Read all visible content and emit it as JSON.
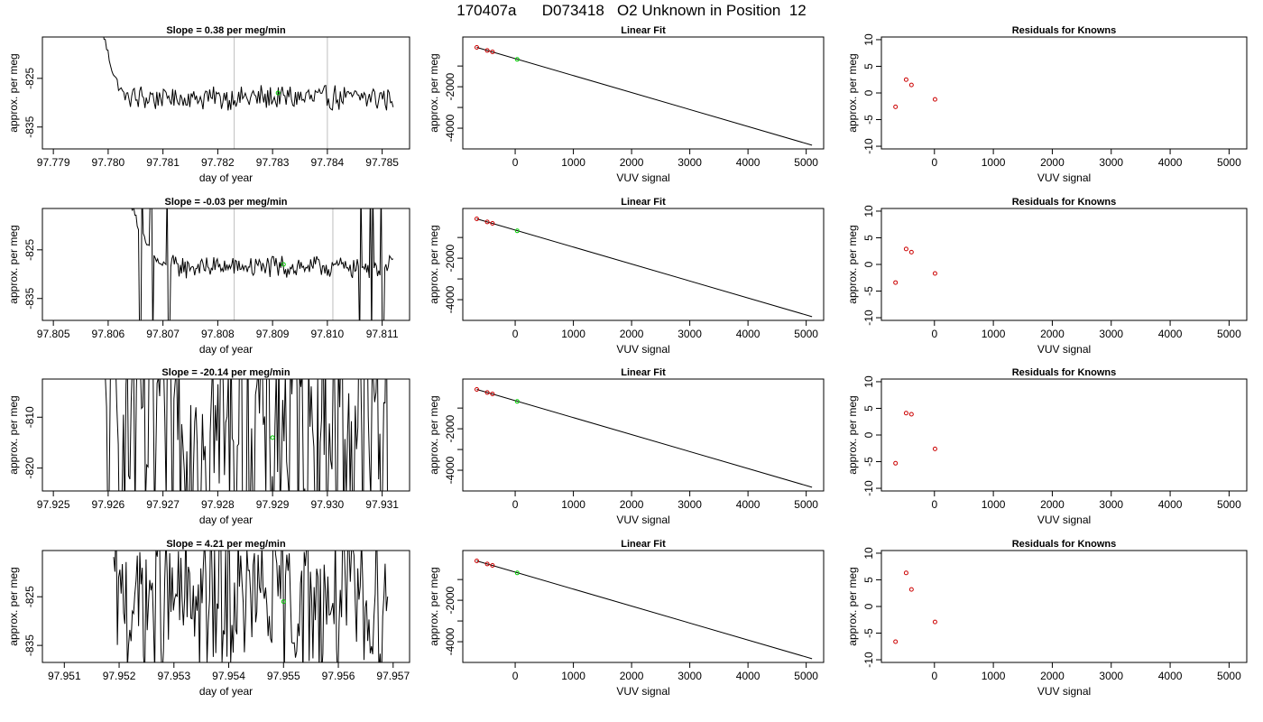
{
  "title": "170407a      D073418   O2 Unknown in Position  12",
  "colors": {
    "trace": "#000000",
    "vline": "#bebebe",
    "unknown": "#00cc00",
    "known": "#cc0000",
    "frame": "#000000"
  },
  "chart_data": [
    {
      "type": "line",
      "panel": "slope",
      "title": "Slope =  0.38  per meg/min",
      "xlabel": "day of year",
      "ylabel": "approx. per meg",
      "xlim": [
        97.7788,
        97.7855
      ],
      "ylim": [
        -839.5,
        -816.5
      ],
      "xticks": [
        97.779,
        97.78,
        97.781,
        97.782,
        97.783,
        97.784,
        97.785
      ],
      "xtick_labels": [
        "97.779",
        "97.780",
        "97.781",
        "97.782",
        "97.783",
        "97.784",
        "97.785"
      ],
      "yticks": [
        -835,
        -825
      ],
      "ytick_labels": [
        "-835",
        "-825"
      ],
      "vlines": [
        97.7823,
        97.784
      ],
      "trace": {
        "x_start": 97.7799,
        "x_end": 97.7852,
        "settle_x": 97.7804,
        "base": -829.0,
        "noise": 2.2,
        "spikes": []
      },
      "unknown_point": {
        "x": 97.7831,
        "y": -828.0
      }
    },
    {
      "type": "line",
      "panel": "slope",
      "title": "Slope =  -0.03  per meg/min",
      "xlabel": "day of year",
      "ylabel": "approx. per meg",
      "xlim": [
        97.8048,
        97.8115
      ],
      "ylim": [
        -839.5,
        -816.5
      ],
      "xticks": [
        97.805,
        97.806,
        97.807,
        97.808,
        97.809,
        97.81,
        97.811
      ],
      "xtick_labels": [
        "97.805",
        "97.806",
        "97.807",
        "97.808",
        "97.809",
        "97.810",
        "97.811"
      ],
      "yticks": [
        -835,
        -825
      ],
      "ytick_labels": [
        "-835",
        "-825"
      ],
      "vlines": [
        97.8083,
        97.8101
      ],
      "trace": {
        "x_start": 97.8064,
        "x_end": 97.8112,
        "settle_x": 97.8071,
        "base": -828.5,
        "noise": 2.0,
        "spikes": [
          97.8066,
          97.8068,
          97.8071,
          97.8106,
          97.8108,
          97.811
        ]
      },
      "unknown_point": {
        "x": 97.8092,
        "y": -828.0
      }
    },
    {
      "type": "line",
      "panel": "slope",
      "title": "Slope =  -20.14  per meg/min",
      "xlabel": "day of year",
      "ylabel": "approx. per meg",
      "xlim": [
        97.9248,
        97.9315
      ],
      "ylim": [
        -824.5,
        -802.5
      ],
      "xticks": [
        97.925,
        97.926,
        97.927,
        97.928,
        97.929,
        97.93,
        97.931
      ],
      "xtick_labels": [
        "97.925",
        "97.926",
        "97.927",
        "97.928",
        "97.929",
        "97.930",
        "97.931"
      ],
      "yticks": [
        -820,
        -810
      ],
      "ytick_labels": [
        "-820",
        "-810"
      ],
      "vlines": [],
      "trace": {
        "x_start": 97.9259,
        "x_end": 97.9311,
        "settle_x": 0,
        "base": -812.0,
        "noise": 22.0,
        "spikes": []
      },
      "unknown_point": {
        "x": 97.929,
        "y": -814.0
      }
    },
    {
      "type": "line",
      "panel": "slope",
      "title": "Slope =  4.21  per meg/min",
      "xlabel": "day of year",
      "ylabel": "approx. per meg",
      "xlim": [
        97.9506,
        97.9573
      ],
      "ylim": [
        -838.5,
        -815.5
      ],
      "xticks": [
        97.951,
        97.952,
        97.953,
        97.954,
        97.955,
        97.956,
        97.957
      ],
      "xtick_labels": [
        "97.951",
        "97.952",
        "97.953",
        "97.954",
        "97.955",
        "97.956",
        "97.957"
      ],
      "yticks": [
        -835,
        -825
      ],
      "ytick_labels": [
        "-835",
        "-825"
      ],
      "vlines": [],
      "trace": {
        "x_start": 97.9519,
        "x_end": 97.9569,
        "settle_x": 0,
        "base": -826.0,
        "noise": 14.0,
        "spikes": []
      },
      "unknown_point": {
        "x": 97.955,
        "y": -826.0
      }
    },
    {
      "type": "scatter",
      "panel": "fit",
      "title": "Linear Fit",
      "xlabel": "VUV signal",
      "ylabel": "approx. per meg",
      "xlim": [
        -900,
        5300
      ],
      "ylim": [
        -5000,
        400
      ],
      "xticks": [
        0,
        1000,
        2000,
        3000,
        4000,
        5000
      ],
      "xtick_labels": [
        "0",
        "1000",
        "2000",
        "3000",
        "4000",
        "5000"
      ],
      "yticks": [
        -4000,
        -3000,
        -2000,
        -1000
      ],
      "ytick_labels": [
        "-4000",
        "",
        "-2000",
        ""
      ],
      "line": {
        "x": [
          -660,
          5100
        ],
        "y": [
          -100,
          -4820
        ]
      },
      "knowns": {
        "x": [
          -660,
          -480,
          -390
        ],
        "y": [
          -100,
          -250,
          -320
        ]
      },
      "unknown": {
        "x": 35,
        "y": -680
      }
    },
    {
      "type": "scatter",
      "panel": "fit",
      "title": "Linear Fit",
      "xlabel": "VUV signal",
      "ylabel": "approx. per meg",
      "xlim": [
        -900,
        5300
      ],
      "ylim": [
        -5000,
        400
      ],
      "xticks": [
        0,
        1000,
        2000,
        3000,
        4000,
        5000
      ],
      "xtick_labels": [
        "0",
        "1000",
        "2000",
        "3000",
        "4000",
        "5000"
      ],
      "yticks": [
        -4000,
        -3000,
        -2000,
        -1000
      ],
      "ytick_labels": [
        "-4000",
        "",
        "-2000",
        ""
      ],
      "line": {
        "x": [
          -660,
          5100
        ],
        "y": [
          -100,
          -4820
        ]
      },
      "knowns": {
        "x": [
          -660,
          -480,
          -390
        ],
        "y": [
          -100,
          -250,
          -320
        ]
      },
      "unknown": {
        "x": 35,
        "y": -680
      }
    },
    {
      "type": "scatter",
      "panel": "fit",
      "title": "Linear Fit",
      "xlabel": "VUV signal",
      "ylabel": "approx. per meg",
      "xlim": [
        -900,
        5300
      ],
      "ylim": [
        -5000,
        400
      ],
      "xticks": [
        0,
        1000,
        2000,
        3000,
        4000,
        5000
      ],
      "xtick_labels": [
        "0",
        "1000",
        "2000",
        "3000",
        "4000",
        "5000"
      ],
      "yticks": [
        -4000,
        -3000,
        -2000,
        -1000
      ],
      "ytick_labels": [
        "-4000",
        "",
        "-2000",
        ""
      ],
      "line": {
        "x": [
          -660,
          5100
        ],
        "y": [
          -100,
          -4820
        ]
      },
      "knowns": {
        "x": [
          -660,
          -480,
          -390
        ],
        "y": [
          -100,
          -250,
          -320
        ]
      },
      "unknown": {
        "x": 35,
        "y": -680
      }
    },
    {
      "type": "scatter",
      "panel": "fit",
      "title": "Linear Fit",
      "xlabel": "VUV signal",
      "ylabel": "approx. per meg",
      "xlim": [
        -900,
        5300
      ],
      "ylim": [
        -5000,
        400
      ],
      "xticks": [
        0,
        1000,
        2000,
        3000,
        4000,
        5000
      ],
      "xtick_labels": [
        "0",
        "1000",
        "2000",
        "3000",
        "4000",
        "5000"
      ],
      "yticks": [
        -4000,
        -3000,
        -2000,
        -1000
      ],
      "ytick_labels": [
        "-4000",
        "",
        "-2000",
        ""
      ],
      "line": {
        "x": [
          -660,
          5100
        ],
        "y": [
          -100,
          -4820
        ]
      },
      "knowns": {
        "x": [
          -660,
          -480,
          -390
        ],
        "y": [
          -100,
          -250,
          -320
        ]
      },
      "unknown": {
        "x": 35,
        "y": -680
      }
    },
    {
      "type": "scatter",
      "panel": "resid",
      "title": "Residuals for Knowns",
      "xlabel": "VUV signal",
      "ylabel": "approx. per meg",
      "xlim": [
        -900,
        5300
      ],
      "ylim": [
        -10.5,
        10.5
      ],
      "xticks": [
        0,
        1000,
        2000,
        3000,
        4000,
        5000
      ],
      "xtick_labels": [
        "0",
        "1000",
        "2000",
        "3000",
        "4000",
        "5000"
      ],
      "yticks": [
        -10,
        -5,
        0,
        5,
        10
      ],
      "ytick_labels": [
        "-10",
        "-5",
        "0",
        "5",
        "10"
      ],
      "points": {
        "x": [
          -660,
          -480,
          -390,
          10
        ],
        "y": [
          -2.6,
          2.5,
          1.5,
          -1.2
        ]
      }
    },
    {
      "type": "scatter",
      "panel": "resid",
      "title": "Residuals for Knowns",
      "xlabel": "VUV signal",
      "ylabel": "approx. per meg",
      "xlim": [
        -900,
        5300
      ],
      "ylim": [
        -10.5,
        10.5
      ],
      "xticks": [
        0,
        1000,
        2000,
        3000,
        4000,
        5000
      ],
      "xtick_labels": [
        "0",
        "1000",
        "2000",
        "3000",
        "4000",
        "5000"
      ],
      "yticks": [
        -10,
        -5,
        0,
        5,
        10
      ],
      "ytick_labels": [
        "-10",
        "-5",
        "0",
        "5",
        "10"
      ],
      "points": {
        "x": [
          -660,
          -480,
          -390,
          10
        ],
        "y": [
          -3.4,
          2.9,
          2.3,
          -1.7
        ]
      }
    },
    {
      "type": "scatter",
      "panel": "resid",
      "title": "Residuals for Knowns",
      "xlabel": "VUV signal",
      "ylabel": "approx. per meg",
      "xlim": [
        -900,
        5300
      ],
      "ylim": [
        -10.5,
        10.5
      ],
      "xticks": [
        0,
        1000,
        2000,
        3000,
        4000,
        5000
      ],
      "xtick_labels": [
        "0",
        "1000",
        "2000",
        "3000",
        "4000",
        "5000"
      ],
      "yticks": [
        -10,
        -5,
        0,
        5,
        10
      ],
      "ytick_labels": [
        "-10",
        "-5",
        "0",
        "5",
        "10"
      ],
      "points": {
        "x": [
          -660,
          -480,
          -390,
          10
        ],
        "y": [
          -5.3,
          4.1,
          3.9,
          -2.6
        ]
      }
    },
    {
      "type": "scatter",
      "panel": "resid",
      "title": "Residuals for Knowns",
      "xlabel": "VUV signal",
      "ylabel": "approx. per meg",
      "xlim": [
        -900,
        5300
      ],
      "ylim": [
        -10.5,
        10.5
      ],
      "xticks": [
        0,
        1000,
        2000,
        3000,
        4000,
        5000
      ],
      "xtick_labels": [
        "0",
        "1000",
        "2000",
        "3000",
        "4000",
        "5000"
      ],
      "yticks": [
        -10,
        -5,
        0,
        5,
        10
      ],
      "ytick_labels": [
        "-10",
        "-5",
        "0",
        "5",
        "10"
      ],
      "points": {
        "x": [
          -660,
          -480,
          -390,
          10
        ],
        "y": [
          -6.6,
          6.3,
          3.2,
          -2.9
        ]
      }
    }
  ]
}
